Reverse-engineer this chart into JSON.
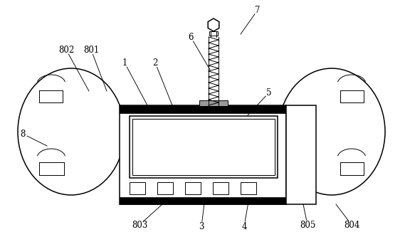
{
  "background_color": "#ffffff",
  "line_color": "#000000",
  "label_data": [
    [
      "1",
      175,
      88,
      207,
      148
    ],
    [
      "2",
      218,
      88,
      242,
      148
    ],
    [
      "5",
      378,
      130,
      348,
      162
    ],
    [
      "6",
      268,
      52,
      295,
      98
    ],
    [
      "7",
      362,
      14,
      338,
      48
    ],
    [
      "8",
      32,
      188,
      66,
      205
    ],
    [
      "801",
      128,
      70,
      150,
      128
    ],
    [
      "802",
      93,
      70,
      125,
      128
    ],
    [
      "803",
      196,
      316,
      228,
      287
    ],
    [
      "804",
      494,
      316,
      472,
      287
    ],
    [
      "805",
      432,
      316,
      426,
      287
    ],
    [
      "3",
      283,
      318,
      288,
      278
    ],
    [
      "4",
      343,
      318,
      350,
      278
    ]
  ]
}
